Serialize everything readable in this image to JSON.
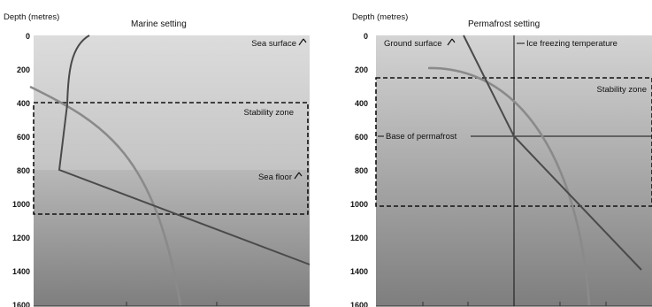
{
  "panels": [
    {
      "y_axis_label": "Depth (metres)",
      "title": "Marine setting",
      "ticks": [
        "0",
        "200",
        "400",
        "600",
        "800",
        "1000",
        "1200",
        "1400",
        "1600"
      ],
      "annotations": {
        "sea_surface": "Sea surface",
        "stability_zone": "Stability zone",
        "sea_floor": "Sea floor"
      }
    },
    {
      "y_axis_label": "Depth (metres)",
      "title": "Permafrost setting",
      "ticks": [
        "0",
        "200",
        "400",
        "600",
        "800",
        "1000",
        "1200",
        "1400",
        "1600"
      ],
      "annotations": {
        "ground_surface": "Ground surface",
        "ice_freezing": "Ice freezing temperature",
        "stability_zone": "Stability zone",
        "base_of_permafrost": "Base of permafrost"
      }
    }
  ],
  "colors": {
    "water_top": "#dcdcdc",
    "water_bottom": "#c4c4c4",
    "sediment_top": "#b8b8b8",
    "sediment_bottom": "#7e7e7e",
    "land_top": "#d4d4d4",
    "land_bottom": "#7e7e7e",
    "temperature_curve": "#4a4a4a",
    "stability_curve": "#8a8a8a"
  }
}
